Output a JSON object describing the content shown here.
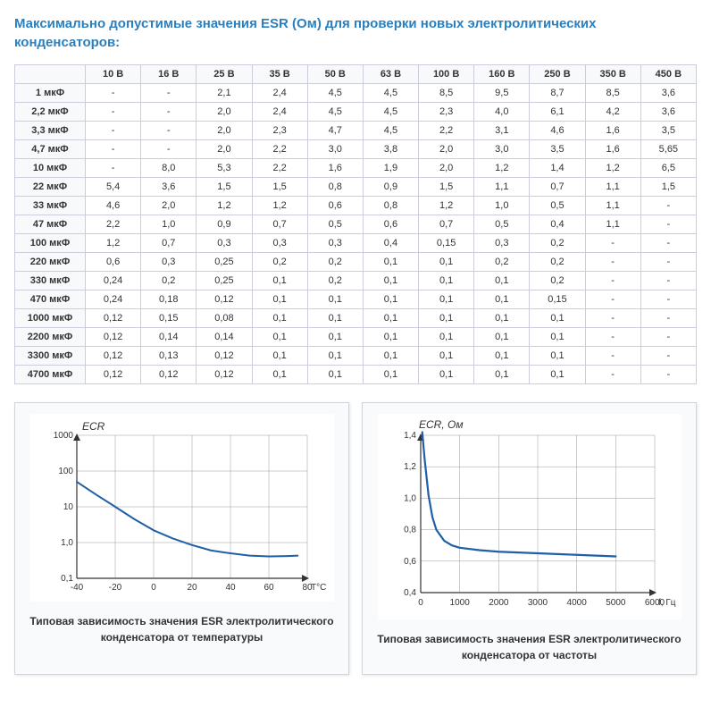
{
  "title": "Максимально допустимые значения ESR (Ом) для проверки новых электролитических конденсаторов:",
  "table": {
    "columns": [
      "",
      "10 В",
      "16 В",
      "25 В",
      "35 В",
      "50 В",
      "63 В",
      "100 В",
      "160 В",
      "250 В",
      "350 В",
      "450 В"
    ],
    "rows": [
      [
        "1 мкФ",
        "-",
        "-",
        "2,1",
        "2,4",
        "4,5",
        "4,5",
        "8,5",
        "9,5",
        "8,7",
        "8,5",
        "3,6"
      ],
      [
        "2,2 мкФ",
        "-",
        "-",
        "2,0",
        "2,4",
        "4,5",
        "4,5",
        "2,3",
        "4,0",
        "6,1",
        "4,2",
        "3,6"
      ],
      [
        "3,3 мкФ",
        "-",
        "-",
        "2,0",
        "2,3",
        "4,7",
        "4,5",
        "2,2",
        "3,1",
        "4,6",
        "1,6",
        "3,5"
      ],
      [
        "4,7 мкФ",
        "-",
        "-",
        "2,0",
        "2,2",
        "3,0",
        "3,8",
        "2,0",
        "3,0",
        "3,5",
        "1,6",
        "5,65"
      ],
      [
        "10 мкФ",
        "-",
        "8,0",
        "5,3",
        "2,2",
        "1,6",
        "1,9",
        "2,0",
        "1,2",
        "1,4",
        "1,2",
        "6,5"
      ],
      [
        "22 мкФ",
        "5,4",
        "3,6",
        "1,5",
        "1,5",
        "0,8",
        "0,9",
        "1,5",
        "1,1",
        "0,7",
        "1,1",
        "1,5"
      ],
      [
        "33 мкФ",
        "4,6",
        "2,0",
        "1,2",
        "1,2",
        "0,6",
        "0,8",
        "1,2",
        "1,0",
        "0,5",
        "1,1",
        "-"
      ],
      [
        "47 мкФ",
        "2,2",
        "1,0",
        "0,9",
        "0,7",
        "0,5",
        "0,6",
        "0,7",
        "0,5",
        "0,4",
        "1,1",
        "-"
      ],
      [
        "100 мкФ",
        "1,2",
        "0,7",
        "0,3",
        "0,3",
        "0,3",
        "0,4",
        "0,15",
        "0,3",
        "0,2",
        "-",
        "-"
      ],
      [
        "220 мкФ",
        "0,6",
        "0,3",
        "0,25",
        "0,2",
        "0,2",
        "0,1",
        "0,1",
        "0,2",
        "0,2",
        "-",
        "-"
      ],
      [
        "330 мкФ",
        "0,24",
        "0,2",
        "0,25",
        "0,1",
        "0,2",
        "0,1",
        "0,1",
        "0,1",
        "0,2",
        "-",
        "-"
      ],
      [
        "470 мкФ",
        "0,24",
        "0,18",
        "0,12",
        "0,1",
        "0,1",
        "0,1",
        "0,1",
        "0,1",
        "0,15",
        "-",
        "-"
      ],
      [
        "1000 мкФ",
        "0,12",
        "0,15",
        "0,08",
        "0,1",
        "0,1",
        "0,1",
        "0,1",
        "0,1",
        "0,1",
        "-",
        "-"
      ],
      [
        "2200 мкФ",
        "0,12",
        "0,14",
        "0,14",
        "0,1",
        "0,1",
        "0,1",
        "0,1",
        "0,1",
        "0,1",
        "-",
        "-"
      ],
      [
        "3300 мкФ",
        "0,12",
        "0,13",
        "0,12",
        "0,1",
        "0,1",
        "0,1",
        "0,1",
        "0,1",
        "0,1",
        "-",
        "-"
      ],
      [
        "4700 мкФ",
        "0,12",
        "0,12",
        "0,12",
        "0,1",
        "0,1",
        "0,1",
        "0,1",
        "0,1",
        "0,1",
        "-",
        "-"
      ]
    ],
    "border_color": "#ccd8e0",
    "header_bg": "#f7f9fb",
    "font_size": 11
  },
  "chart_temp": {
    "type": "line",
    "title_y": "ECR",
    "title_y_fontsize": 12,
    "title_y_fontstyle": "italic",
    "xlabel": "T°C",
    "xlim": [
      -40,
      80
    ],
    "xtick_step": 20,
    "yscale": "log",
    "ylim": [
      0.1,
      1000
    ],
    "yticks": [
      0.1,
      1.0,
      10,
      100,
      1000
    ],
    "ytick_labels": [
      "0,1",
      "1,0",
      "10",
      "100",
      "1000"
    ],
    "line_color": "#1f5fa8",
    "line_width": 2,
    "grid_color": "#999",
    "axis_color": "#333",
    "font_family": "Arial",
    "label_fontsize": 10,
    "points": [
      {
        "x": -40,
        "y": 50
      },
      {
        "x": -30,
        "y": 22
      },
      {
        "x": -20,
        "y": 10
      },
      {
        "x": -10,
        "y": 4.5
      },
      {
        "x": 0,
        "y": 2.2
      },
      {
        "x": 10,
        "y": 1.3
      },
      {
        "x": 20,
        "y": 0.85
      },
      {
        "x": 30,
        "y": 0.6
      },
      {
        "x": 40,
        "y": 0.5
      },
      {
        "x": 50,
        "y": 0.43
      },
      {
        "x": 60,
        "y": 0.41
      },
      {
        "x": 70,
        "y": 0.42
      },
      {
        "x": 75,
        "y": 0.43
      }
    ],
    "caption": "Типовая зависимость значения ESR электролитического конденсатора от температуры"
  },
  "chart_freq": {
    "type": "line",
    "title_y": "ECR, Ом",
    "title_y_fontsize": 12,
    "title_y_fontstyle": "italic",
    "xlabel": "f, Гц",
    "xlim": [
      0,
      6000
    ],
    "xtick_step": 1000,
    "ylim": [
      0.4,
      1.4
    ],
    "ytick_step": 0.2,
    "ytick_labels": [
      "0,4",
      "0,6",
      "0,8",
      "1,0",
      "1,2",
      "1,4"
    ],
    "line_color": "#1f5fa8",
    "line_width": 2.2,
    "grid_color": "#999",
    "axis_color": "#333",
    "font_family": "Arial",
    "label_fontsize": 10,
    "points": [
      {
        "x": 40,
        "y": 1.42
      },
      {
        "x": 100,
        "y": 1.25
      },
      {
        "x": 200,
        "y": 1.02
      },
      {
        "x": 300,
        "y": 0.88
      },
      {
        "x": 400,
        "y": 0.8
      },
      {
        "x": 600,
        "y": 0.73
      },
      {
        "x": 800,
        "y": 0.7
      },
      {
        "x": 1000,
        "y": 0.685
      },
      {
        "x": 1500,
        "y": 0.67
      },
      {
        "x": 2000,
        "y": 0.66
      },
      {
        "x": 3000,
        "y": 0.65
      },
      {
        "x": 4000,
        "y": 0.64
      },
      {
        "x": 5000,
        "y": 0.63
      }
    ],
    "caption": "Типовая зависимость значения ESR электролитического конденсатора от частоты"
  }
}
